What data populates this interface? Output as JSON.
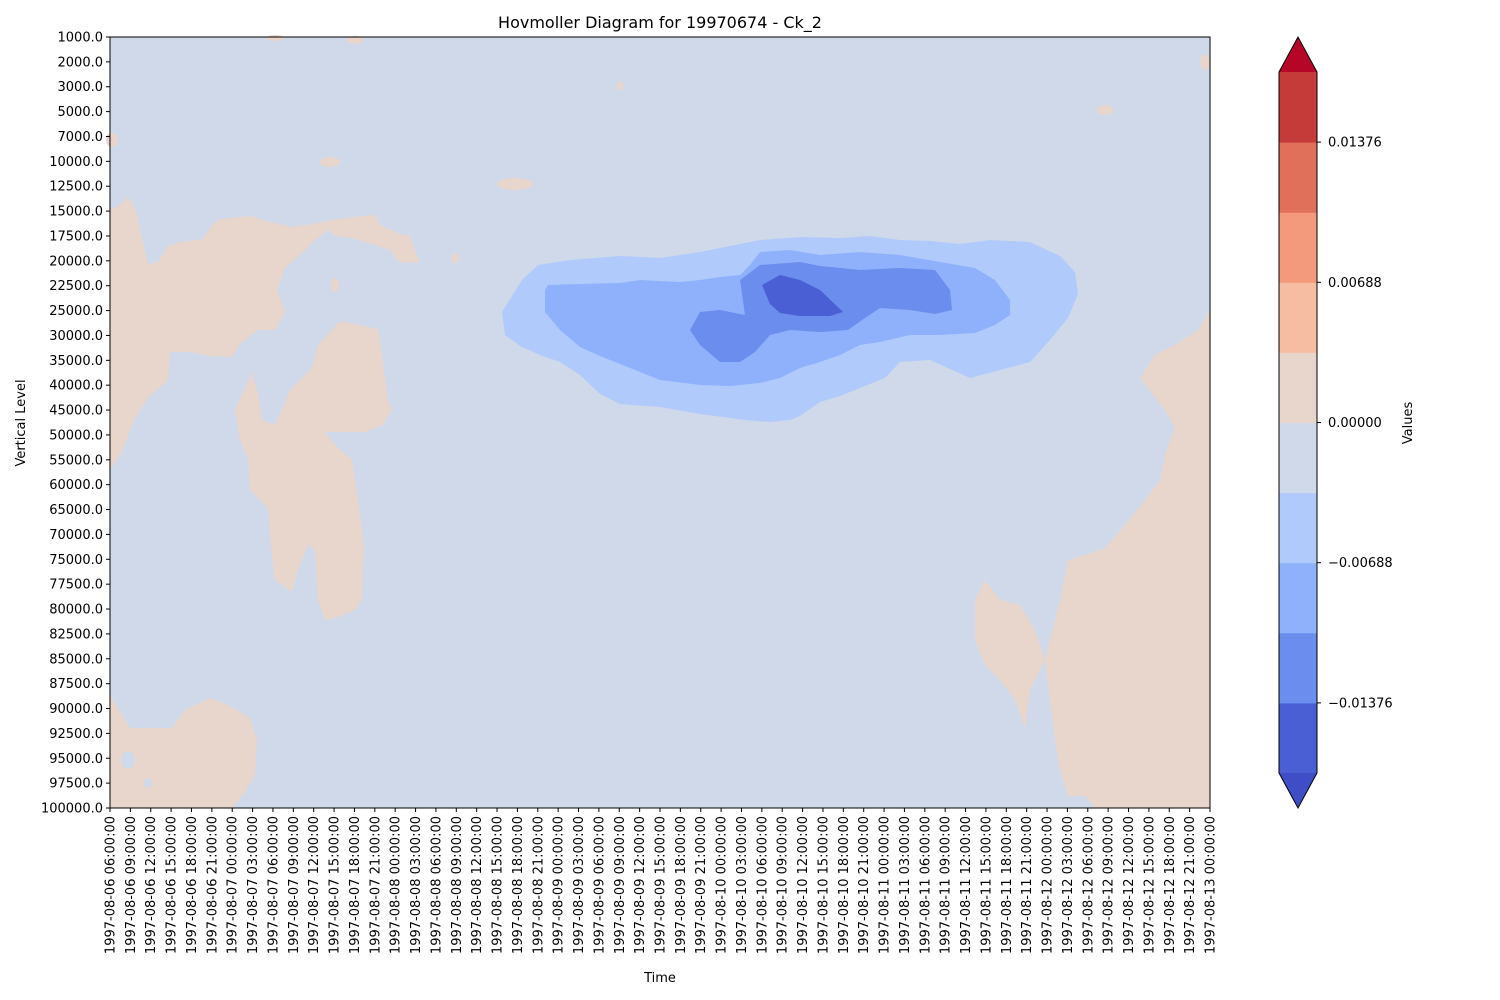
{
  "chart_data": {
    "type": "heatmap",
    "subtype": "filled-contour",
    "title": "Hovmoller Diagram for 19970674 - Ck_2",
    "xlabel": "Time",
    "ylabel": "Vertical Level",
    "y_levels": [
      "1000.0",
      "2000.0",
      "3000.0",
      "5000.0",
      "7000.0",
      "10000.0",
      "12500.0",
      "15000.0",
      "17500.0",
      "20000.0",
      "22500.0",
      "25000.0",
      "30000.0",
      "35000.0",
      "40000.0",
      "45000.0",
      "50000.0",
      "55000.0",
      "60000.0",
      "65000.0",
      "70000.0",
      "75000.0",
      "77500.0",
      "80000.0",
      "82500.0",
      "85000.0",
      "87500.0",
      "90000.0",
      "92500.0",
      "95000.0",
      "97500.0",
      "100000.0"
    ],
    "x_times": [
      "1997-08-06 06:00:00",
      "1997-08-06 09:00:00",
      "1997-08-06 12:00:00",
      "1997-08-06 15:00:00",
      "1997-08-06 18:00:00",
      "1997-08-06 21:00:00",
      "1997-08-07 00:00:00",
      "1997-08-07 03:00:00",
      "1997-08-07 06:00:00",
      "1997-08-07 09:00:00",
      "1997-08-07 12:00:00",
      "1997-08-07 15:00:00",
      "1997-08-07 18:00:00",
      "1997-08-07 21:00:00",
      "1997-08-08 00:00:00",
      "1997-08-08 03:00:00",
      "1997-08-08 06:00:00",
      "1997-08-08 09:00:00",
      "1997-08-08 12:00:00",
      "1997-08-08 15:00:00",
      "1997-08-08 18:00:00",
      "1997-08-08 21:00:00",
      "1997-08-09 00:00:00",
      "1997-08-09 03:00:00",
      "1997-08-09 06:00:00",
      "1997-08-09 09:00:00",
      "1997-08-09 12:00:00",
      "1997-08-09 15:00:00",
      "1997-08-09 18:00:00",
      "1997-08-09 21:00:00",
      "1997-08-10 00:00:00",
      "1997-08-10 03:00:00",
      "1997-08-10 06:00:00",
      "1997-08-10 09:00:00",
      "1997-08-10 12:00:00",
      "1997-08-10 15:00:00",
      "1997-08-10 18:00:00",
      "1997-08-10 21:00:00",
      "1997-08-11 00:00:00",
      "1997-08-11 03:00:00",
      "1997-08-11 06:00:00",
      "1997-08-11 09:00:00",
      "1997-08-11 12:00:00",
      "1997-08-11 15:00:00",
      "1997-08-11 18:00:00",
      "1997-08-11 21:00:00",
      "1997-08-12 00:00:00",
      "1997-08-12 03:00:00",
      "1997-08-12 06:00:00",
      "1997-08-12 09:00:00",
      "1997-08-12 12:00:00",
      "1997-08-12 15:00:00",
      "1997-08-12 18:00:00",
      "1997-08-12 21:00:00",
      "1997-08-13 00:00:00"
    ],
    "colorbar": {
      "label": "Values",
      "extend": "both",
      "tick_values": [
        0.01376,
        0.00688,
        0.0,
        -0.00688,
        -0.01376
      ],
      "tick_labels": [
        "0.01376",
        "0.00688",
        "0.00000",
        "−0.00688",
        "−0.01376"
      ],
      "levels": [
        -0.0172,
        -0.01376,
        -0.01032,
        -0.00688,
        -0.00344,
        0.0,
        0.00344,
        0.00688,
        0.01032,
        0.01376,
        0.0172
      ],
      "colors": [
        "#4a5fd3",
        "#6b8ded",
        "#8fb1fb",
        "#b0cbfb",
        "#cfd9e9",
        "#e8d6cd",
        "#f6bda3",
        "#f29a7b",
        "#e1705b",
        "#c43b3a"
      ],
      "under_color": "#3f4ec6",
      "over_color": "#b50628"
    },
    "zero_band_color": "#cfd9e9",
    "regions": [
      {
        "name": "positive-left-upper",
        "level": 0.0017,
        "color": "#e8d6cd"
      },
      {
        "name": "positive-left-middle",
        "level": 0.0017,
        "color": "#e8d6cd"
      },
      {
        "name": "positive-left-bottom",
        "level": 0.0017,
        "color": "#e8d6cd"
      },
      {
        "name": "positive-right-bottom",
        "level": 0.0017,
        "color": "#e8d6cd"
      },
      {
        "name": "negative-core-outer",
        "level": -0.0052,
        "color": "#b0cbfb"
      },
      {
        "name": "negative-core-mid",
        "level": -0.0086,
        "color": "#8fb1fb"
      },
      {
        "name": "negative-core-inner",
        "level": -0.012,
        "color": "#6b8ded"
      },
      {
        "name": "negative-core-min",
        "level": -0.0155,
        "color": "#4a5fd3"
      }
    ]
  }
}
